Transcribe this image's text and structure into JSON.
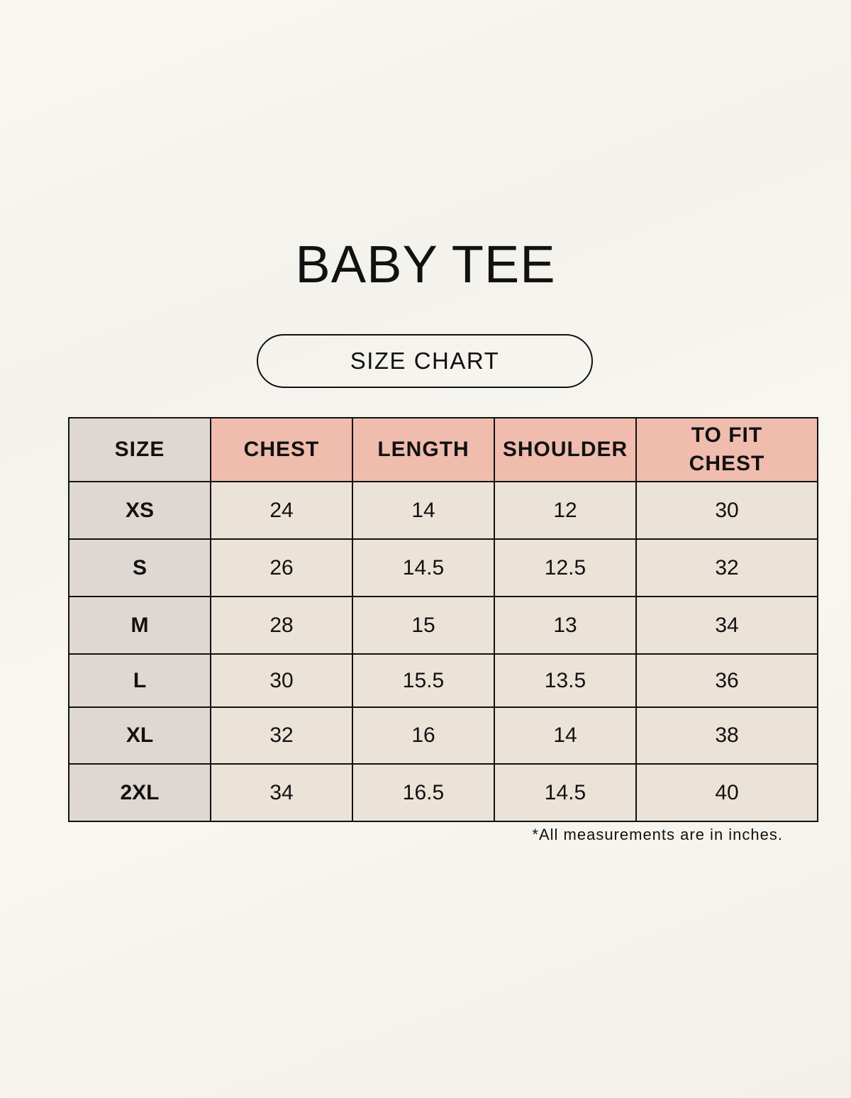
{
  "title": "BABY TEE",
  "subtitle": "SIZE CHART",
  "colors": {
    "header": "#efbcae",
    "size_column": "#dfd8d2",
    "cells": "#ece3d8",
    "background": "#f8f6f0"
  },
  "table": {
    "headers": [
      "SIZE",
      "CHEST",
      "LENGTH",
      "SHOULDER",
      "TO FIT CHEST"
    ],
    "rows": [
      [
        "XS",
        "24",
        "14",
        "12",
        "30"
      ],
      [
        "S",
        "26",
        "14.5",
        "12.5",
        "32"
      ],
      [
        "M",
        "28",
        "15",
        "13",
        "34"
      ],
      [
        "L",
        "30",
        "15.5",
        "13.5",
        "36"
      ],
      [
        "XL",
        "32",
        "16",
        "14",
        "38"
      ],
      [
        "2XL",
        "34",
        "16.5",
        "14.5",
        "40"
      ]
    ]
  },
  "note": "*All measurements are in inches."
}
